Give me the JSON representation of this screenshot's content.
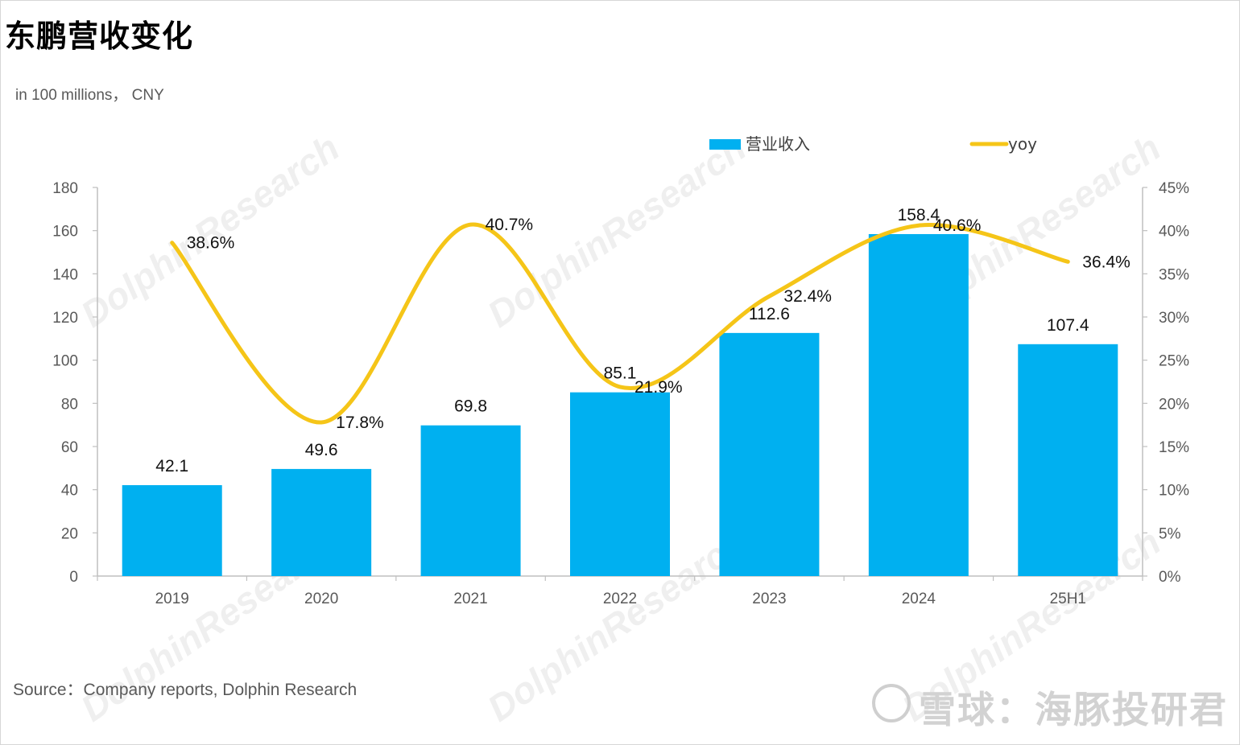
{
  "title": "东鹏营收变化",
  "unit_note": "in 100 millions， CNY",
  "source": "Source：Company reports, Dolphin Research",
  "watermark": "雪球：海豚投研君",
  "colors": {
    "bar": "#00B0F0",
    "line": "#F5C518"
  },
  "chart_data": {
    "type": "bar",
    "categories": [
      "2019",
      "2020",
      "2021",
      "2022",
      "2023",
      "2024",
      "25H1"
    ],
    "series": [
      {
        "name": "营业收入",
        "type": "bar",
        "axis": "left",
        "values": [
          42.1,
          49.6,
          69.8,
          85.1,
          112.6,
          158.4,
          107.4
        ],
        "labels": [
          "42.1",
          "49.6",
          "69.8",
          "85.1",
          "112.6",
          "158.4",
          "107.4"
        ]
      },
      {
        "name": "yoy",
        "type": "line",
        "axis": "right",
        "smooth": true,
        "values": [
          38.6,
          17.8,
          40.7,
          21.9,
          32.4,
          40.6,
          36.4
        ],
        "labels": [
          "38.6%",
          "17.8%",
          "40.7%",
          "21.9%",
          "32.4%",
          "40.6%",
          "36.4%"
        ]
      }
    ],
    "y_left": {
      "min": 0,
      "max": 180,
      "step": 20,
      "ticks": [
        "0",
        "20",
        "40",
        "60",
        "80",
        "100",
        "120",
        "140",
        "160",
        "180"
      ]
    },
    "y_right": {
      "min": 0,
      "max": 45,
      "step": 5,
      "ticks": [
        "0%",
        "5%",
        "10%",
        "15%",
        "20%",
        "25%",
        "30%",
        "35%",
        "40%",
        "45%"
      ]
    },
    "legend_position": "top",
    "grid": false
  }
}
